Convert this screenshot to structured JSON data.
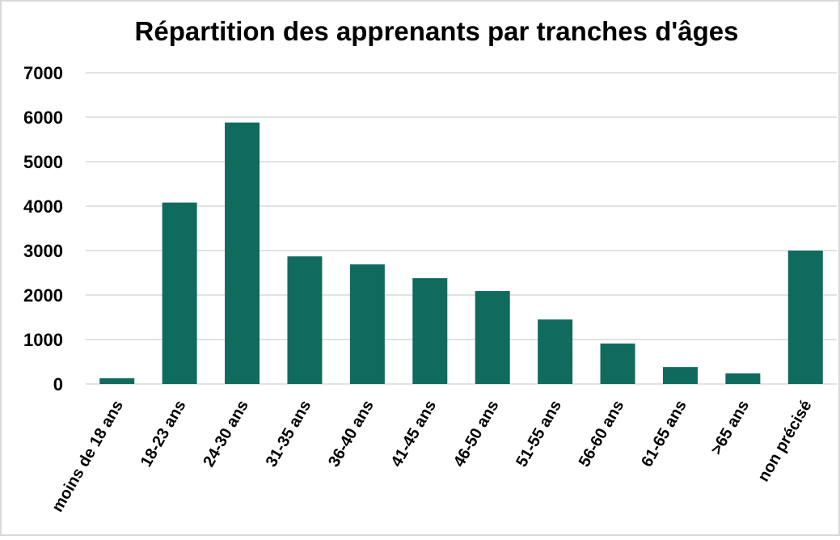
{
  "chart_data": {
    "type": "bar",
    "title": "Répartition des apprenants par tranches d'âges",
    "categories": [
      "moins de 18 ans",
      "18-23 ans",
      "24-30 ans",
      "31-35 ans",
      "36-40 ans",
      "41-45 ans",
      "46-50 ans",
      "51-55 ans",
      "56-60 ans",
      "61-65 ans",
      ">65 ans",
      "non précisé"
    ],
    "values": [
      130,
      4080,
      5880,
      2870,
      2690,
      2380,
      2090,
      1450,
      910,
      380,
      240,
      3000
    ],
    "color": "#106b5e",
    "ylim": [
      0,
      7000
    ],
    "yticks": [
      0,
      1000,
      2000,
      3000,
      4000,
      5000,
      6000,
      7000
    ],
    "grid": true
  }
}
